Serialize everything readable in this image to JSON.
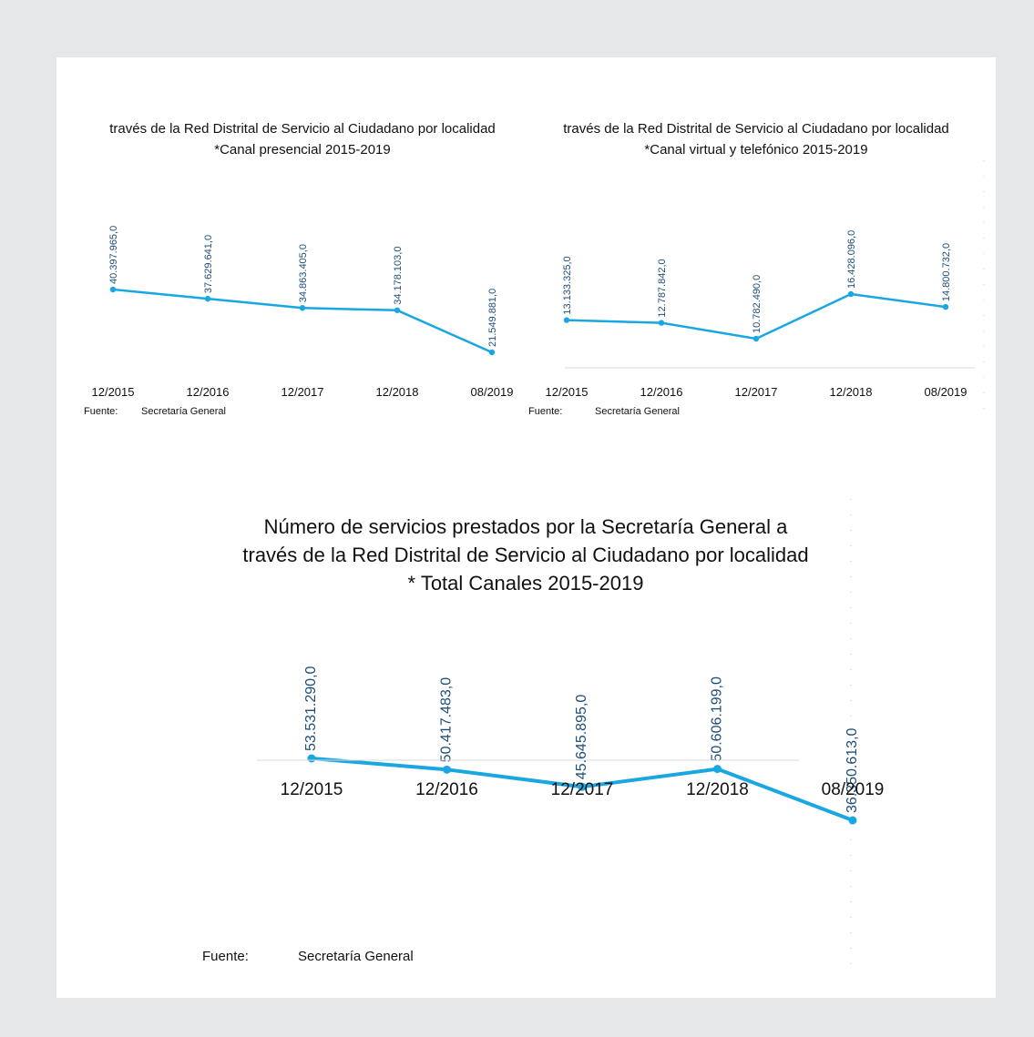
{
  "chart_data": [
    {
      "type": "line",
      "title_lines": [
        "través de la Red Distrital de Servicio al Ciudadano por localidad",
        "*Canal presencial 2015-2019"
      ],
      "categories": [
        "12/2015",
        "12/2016",
        "12/2017",
        "12/2018",
        "08/2019"
      ],
      "values": [
        40397965,
        37629641,
        34863405,
        34178103,
        21549881
      ],
      "data_labels": [
        "40.397.965,0",
        "37.629.641,0",
        "34.863.405,0",
        "34.178.103,0",
        "21.549.881,0"
      ],
      "source_label": "Fuente:",
      "source_value": "Secretaría General",
      "grid": false,
      "legend": "none",
      "color": "#1aa7e1"
    },
    {
      "type": "line",
      "title_lines": [
        "través de la Red Distrital de Servicio al Ciudadano por localidad",
        "*Canal virtual y telefónico 2015-2019"
      ],
      "categories": [
        "12/2015",
        "12/2016",
        "12/2017",
        "12/2018",
        "08/2019"
      ],
      "values": [
        13133325,
        12787842,
        10782490,
        16428096,
        14800732
      ],
      "data_labels": [
        "13.133.325,0",
        "12.787.842,0",
        "10.782.490,0",
        "16.428.096,0",
        "14.800.732,0"
      ],
      "source_label": "Fuente:",
      "source_value": "Secretaría General",
      "grid": false,
      "legend": "none",
      "color": "#1aa7e1"
    },
    {
      "type": "line",
      "title_lines": [
        "Número de servicios prestados por la Secretaría General a",
        "través de la Red Distrital de Servicio al Ciudadano por localidad",
        "* Total Canales 2015-2019"
      ],
      "categories": [
        "12/2015",
        "12/2016",
        "12/2017",
        "12/2018",
        "08/2019"
      ],
      "values": [
        53531290,
        50417483,
        45645895,
        50606199,
        36350613
      ],
      "data_labels": [
        "53.531.290,0",
        "50.417.483,0",
        "45.645.895,0",
        "50.606.199,0",
        "36.350.613,0"
      ],
      "source_label": "Fuente:",
      "source_value": "Secretaría General",
      "grid": false,
      "legend": "none",
      "color": "#1aa7e1"
    }
  ]
}
